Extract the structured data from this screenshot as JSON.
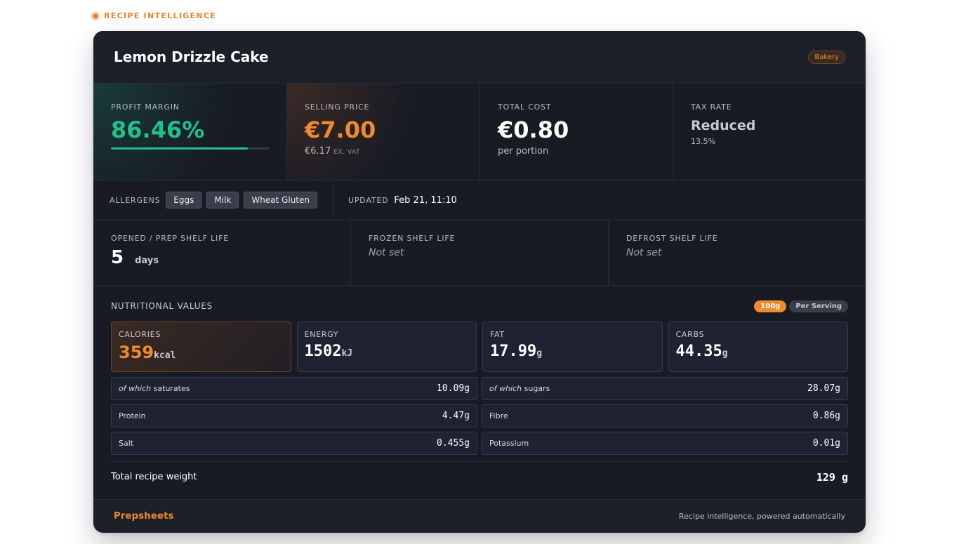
{
  "brand_label": "RECIPE INTELLIGENCE",
  "recipe": {
    "title": "Lemon Drizzle Cake",
    "category": "Bakery"
  },
  "metrics": {
    "profit": {
      "label": "PROFIT MARGIN",
      "value": "86.46%",
      "progress": 0.8646
    },
    "price": {
      "label": "SELLING PRICE",
      "value": "€7.00",
      "ex_value": "€6.17",
      "ex_label": "EX. VAT"
    },
    "cost": {
      "label": "TOTAL COST",
      "value": "€0.80",
      "sub": "per portion"
    },
    "tax": {
      "label": "TAX RATE",
      "value": "Reduced",
      "sub": "13.5%"
    }
  },
  "allergens": {
    "label": "ALLERGENS",
    "items": [
      "Eggs",
      "Milk",
      "Wheat Gluten"
    ]
  },
  "updated": {
    "label": "UPDATED",
    "value": "Feb 21, 11:10"
  },
  "shelf_life": {
    "opened": {
      "label": "OPENED / PREP SHELF LIFE",
      "value": "5",
      "unit": "days"
    },
    "frozen": {
      "label": "FROZEN SHELF LIFE",
      "value": "Not set"
    },
    "defrost": {
      "label": "DEFROST SHELF LIFE",
      "value": "Not set"
    }
  },
  "nutrition": {
    "title": "NUTRITIONAL VALUES",
    "toggles": {
      "per100": "100g",
      "serving": "Per Serving",
      "active": "100g"
    },
    "cards": [
      {
        "label": "CALORIES",
        "value": "359",
        "unit": "kcal"
      },
      {
        "label": "ENERGY",
        "value": "1502",
        "unit": "kJ"
      },
      {
        "label": "FAT",
        "value": "17.99",
        "unit": "g"
      },
      {
        "label": "CARBS",
        "value": "44.35",
        "unit": "g"
      }
    ],
    "rows": [
      {
        "prefix": "of which",
        "label": "saturates",
        "value": "10.09",
        "unit": "g"
      },
      {
        "prefix": "of which",
        "label": "sugars",
        "value": "28.07",
        "unit": "g"
      },
      {
        "prefix": "",
        "label": "Protein",
        "value": "4.47",
        "unit": "g"
      },
      {
        "prefix": "",
        "label": "Fibre",
        "value": "0.86",
        "unit": "g"
      },
      {
        "prefix": "",
        "label": "Salt",
        "value": "0.455",
        "unit": "g"
      },
      {
        "prefix": "",
        "label": "Potassium",
        "value": "0.01",
        "unit": "g"
      }
    ],
    "total": {
      "label": "Total recipe weight",
      "value": "129 g"
    }
  },
  "footer": {
    "brand": "Prepsheets",
    "tagline": "Recipe intelligence, powered automatically"
  },
  "colors": {
    "accent": "#f08a2c",
    "profit": "#22c08a",
    "background": "#181b24"
  }
}
